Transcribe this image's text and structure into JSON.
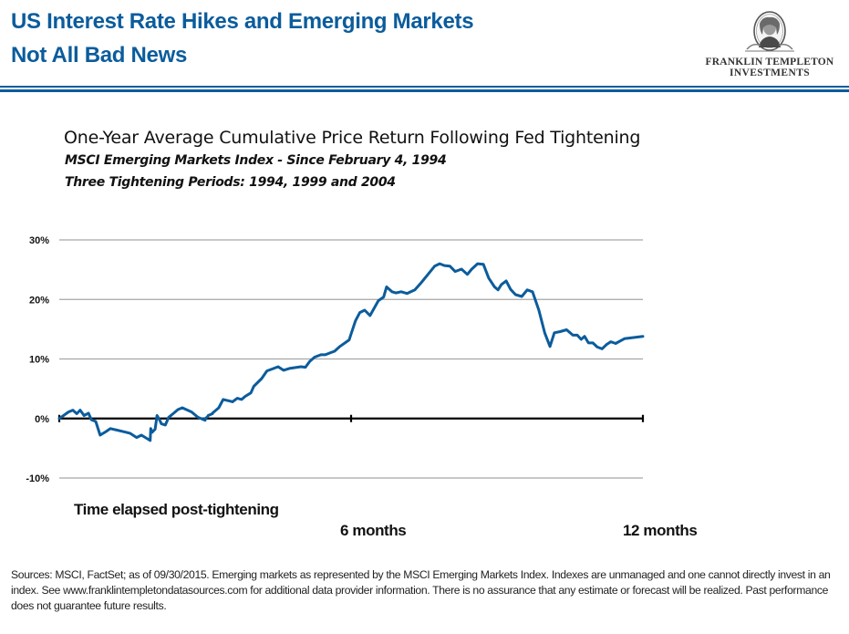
{
  "header": {
    "title_line1": "US Interest Rate Hikes and Emerging Markets",
    "title_line2": "Not All Bad News",
    "brand_color": "#0b5c9c"
  },
  "logo": {
    "line1": "FRANKLIN TEMPLETON",
    "line2": "INVESTMENTS",
    "icon": "benjamin-franklin-portrait-icon"
  },
  "chart_data": {
    "type": "line",
    "title": "One-Year Average Cumulative Price Return Following Fed Tightening",
    "subtitle1": "MSCI Emerging Markets Index - Since February 4, 1994",
    "subtitle2": "Three  Tightening Periods: 1994, 1999 and 2004",
    "xlabel": "Time elapsed post-tightening",
    "ylabel": "",
    "xlim": [
      0,
      12
    ],
    "ylim": [
      -10,
      30
    ],
    "yticks": [
      30,
      20,
      10,
      0,
      -10
    ],
    "ytick_labels": [
      "30%",
      "20%",
      "10%",
      "0%",
      "-10%"
    ],
    "xticks": [
      0,
      6,
      12
    ],
    "xtick_labels": [
      "",
      "6 months",
      "12 months"
    ],
    "grid": true,
    "line_color": "#0b5c9c",
    "series": [
      {
        "name": "MSCI Emerging Markets Index average cumulative price return (%)",
        "x_months": [
          0,
          0.19,
          0.28,
          0.36,
          0.43,
          0.51,
          0.6,
          0.66,
          0.75,
          0.84,
          0.96,
          1.05,
          1.37,
          1.46,
          1.59,
          1.69,
          1.87,
          1.88,
          1.91,
          1.97,
          2.18,
          2.1,
          2.06,
          2.01,
          2.25,
          2.34,
          2.44,
          2.53,
          2.72,
          2.85,
          3.0,
          3.15,
          3.28,
          3.37,
          3.0,
          3.05,
          3.06,
          3.15,
          3.28,
          3.37,
          3.52,
          3.56,
          3.66,
          3.75,
          3.82,
          3.94,
          4.0,
          4.16,
          4.27,
          4.37,
          4.5,
          4.61,
          4.73,
          4.97,
          5.06,
          5.15,
          5.25,
          5.38,
          5.47,
          5.56,
          5.66,
          5.77,
          5.96,
          6.0,
          6.09,
          6.18,
          6.28,
          6.39,
          6.56,
          6.67,
          6.73,
          6.84,
          6.92,
          7.03,
          7.15,
          7.31,
          7.44,
          7.59,
          7.72,
          7.82,
          7.92,
          8.03,
          8.14,
          8.27,
          8.39,
          8.48,
          8.6,
          8.72,
          8.83,
          8.95,
          9.02,
          9.09,
          9.19,
          9.28,
          9.38,
          9.51,
          9.62,
          9.73,
          9.86,
          9.98,
          10.09,
          10.18,
          10.3,
          10.43,
          10.56,
          10.65,
          10.73,
          10.8,
          10.88,
          10.97,
          11.06,
          11.16,
          11.25,
          11.34,
          11.44,
          11.62,
          12.0
        ],
        "values": [
          0,
          1.1,
          1.4,
          0.8,
          1.4,
          0.5,
          0.9,
          -0.2,
          -0.5,
          -2.8,
          -2.2,
          -1.7,
          -2.3,
          -2.5,
          -3.2,
          -2.8,
          -3.7,
          -1.7,
          -2.3,
          -1.8,
          -1.1,
          -0.9,
          -0.2,
          0.5,
          0.2,
          0.8,
          1.5,
          1.8,
          1.1,
          0.2,
          -0.3,
          0.8,
          1.8,
          3.2,
          0.0,
          0.3,
          0.5,
          0.9,
          1.8,
          3.2,
          2.9,
          2.8,
          3.4,
          3.2,
          3.7,
          4.3,
          5.4,
          6.7,
          8.0,
          8.3,
          8.7,
          8.1,
          8.4,
          8.7,
          8.6,
          9.6,
          10.3,
          10.7,
          10.7,
          11.0,
          11.3,
          12.1,
          13.2,
          14.2,
          16.4,
          17.8,
          18.2,
          17.3,
          19.8,
          20.4,
          22.1,
          21.3,
          21.1,
          21.3,
          21.0,
          21.6,
          22.8,
          24.3,
          25.6,
          26.0,
          25.7,
          25.6,
          24.7,
          25.1,
          24.2,
          25.1,
          26.0,
          25.9,
          23.6,
          22.1,
          21.6,
          22.5,
          23.1,
          21.7,
          20.8,
          20.5,
          21.6,
          21.3,
          18.2,
          14.4,
          12.1,
          14.4,
          14.6,
          14.9,
          14.0,
          14.0,
          13.3,
          13.8,
          12.7,
          12.7,
          12.0,
          11.7,
          12.4,
          12.9,
          12.6,
          13.4,
          13.8
        ]
      }
    ]
  },
  "footnote": "Sources: MSCI, FactSet; as of 09/30/2015.  Emerging markets as represented by the MSCI Emerging Markets Index. Indexes are unmanaged and one cannot directly invest in an index. See  www.franklintempletondatasources.com for additional data provider information. There is no assurance that  any estimate or forecast will be realized. Past performance does not guarantee future  results."
}
